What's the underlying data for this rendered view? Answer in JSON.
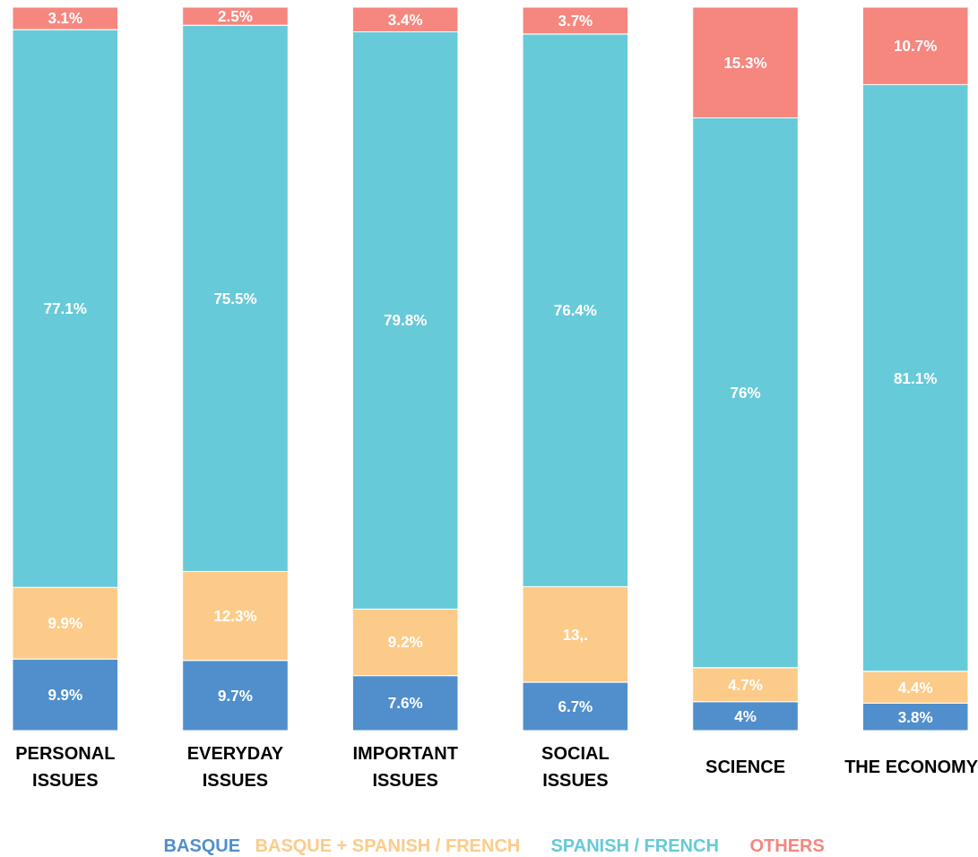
{
  "chart_data": {
    "type": "bar",
    "stacked": true,
    "categories": [
      "PERSONAL\nISSUES",
      "EVERYDAY\nISSUES",
      "IMPORTANT\nISSUES",
      "SOCIAL\nISSUES",
      "SCIENCE",
      "THE ECONOMY"
    ],
    "ylim": [
      0,
      100
    ],
    "legend": "bottom",
    "tick_labels": "x",
    "series": [
      {
        "name": "BASQUE",
        "color": "#508fcc",
        "values": [
          9.9,
          9.7,
          7.6,
          6.7,
          4,
          3.8
        ],
        "value_labels": [
          "9.9%",
          "9.7%",
          "7.6%",
          "6.7%",
          "4%",
          "3.8%"
        ]
      },
      {
        "name": "BASQUE + SPANISH / FRENCH",
        "color": "#fccb89",
        "values": [
          9.9,
          12.3,
          9.2,
          13.2,
          4.7,
          4.4
        ],
        "value_labels": [
          "9.9%",
          "12.3%",
          "9.2%",
          "13,.",
          "4.7%",
          "4.4%"
        ]
      },
      {
        "name": "SPANISH / FRENCH",
        "color": "#67cad8",
        "values": [
          77.1,
          75.5,
          79.8,
          76.4,
          76,
          81.1
        ],
        "value_labels": [
          "77.1%",
          "75.5%",
          "79.8%",
          "76.4%",
          "76%",
          "81.1%"
        ]
      },
      {
        "name": "OTHERS",
        "color": "#f5877f",
        "values": [
          3.1,
          2.5,
          3.4,
          3.7,
          15.3,
          10.7
        ],
        "value_labels": [
          "3.1%",
          "2.5%",
          "3.4%",
          "3.7%",
          "15.3%",
          "10.7%"
        ]
      }
    ]
  }
}
